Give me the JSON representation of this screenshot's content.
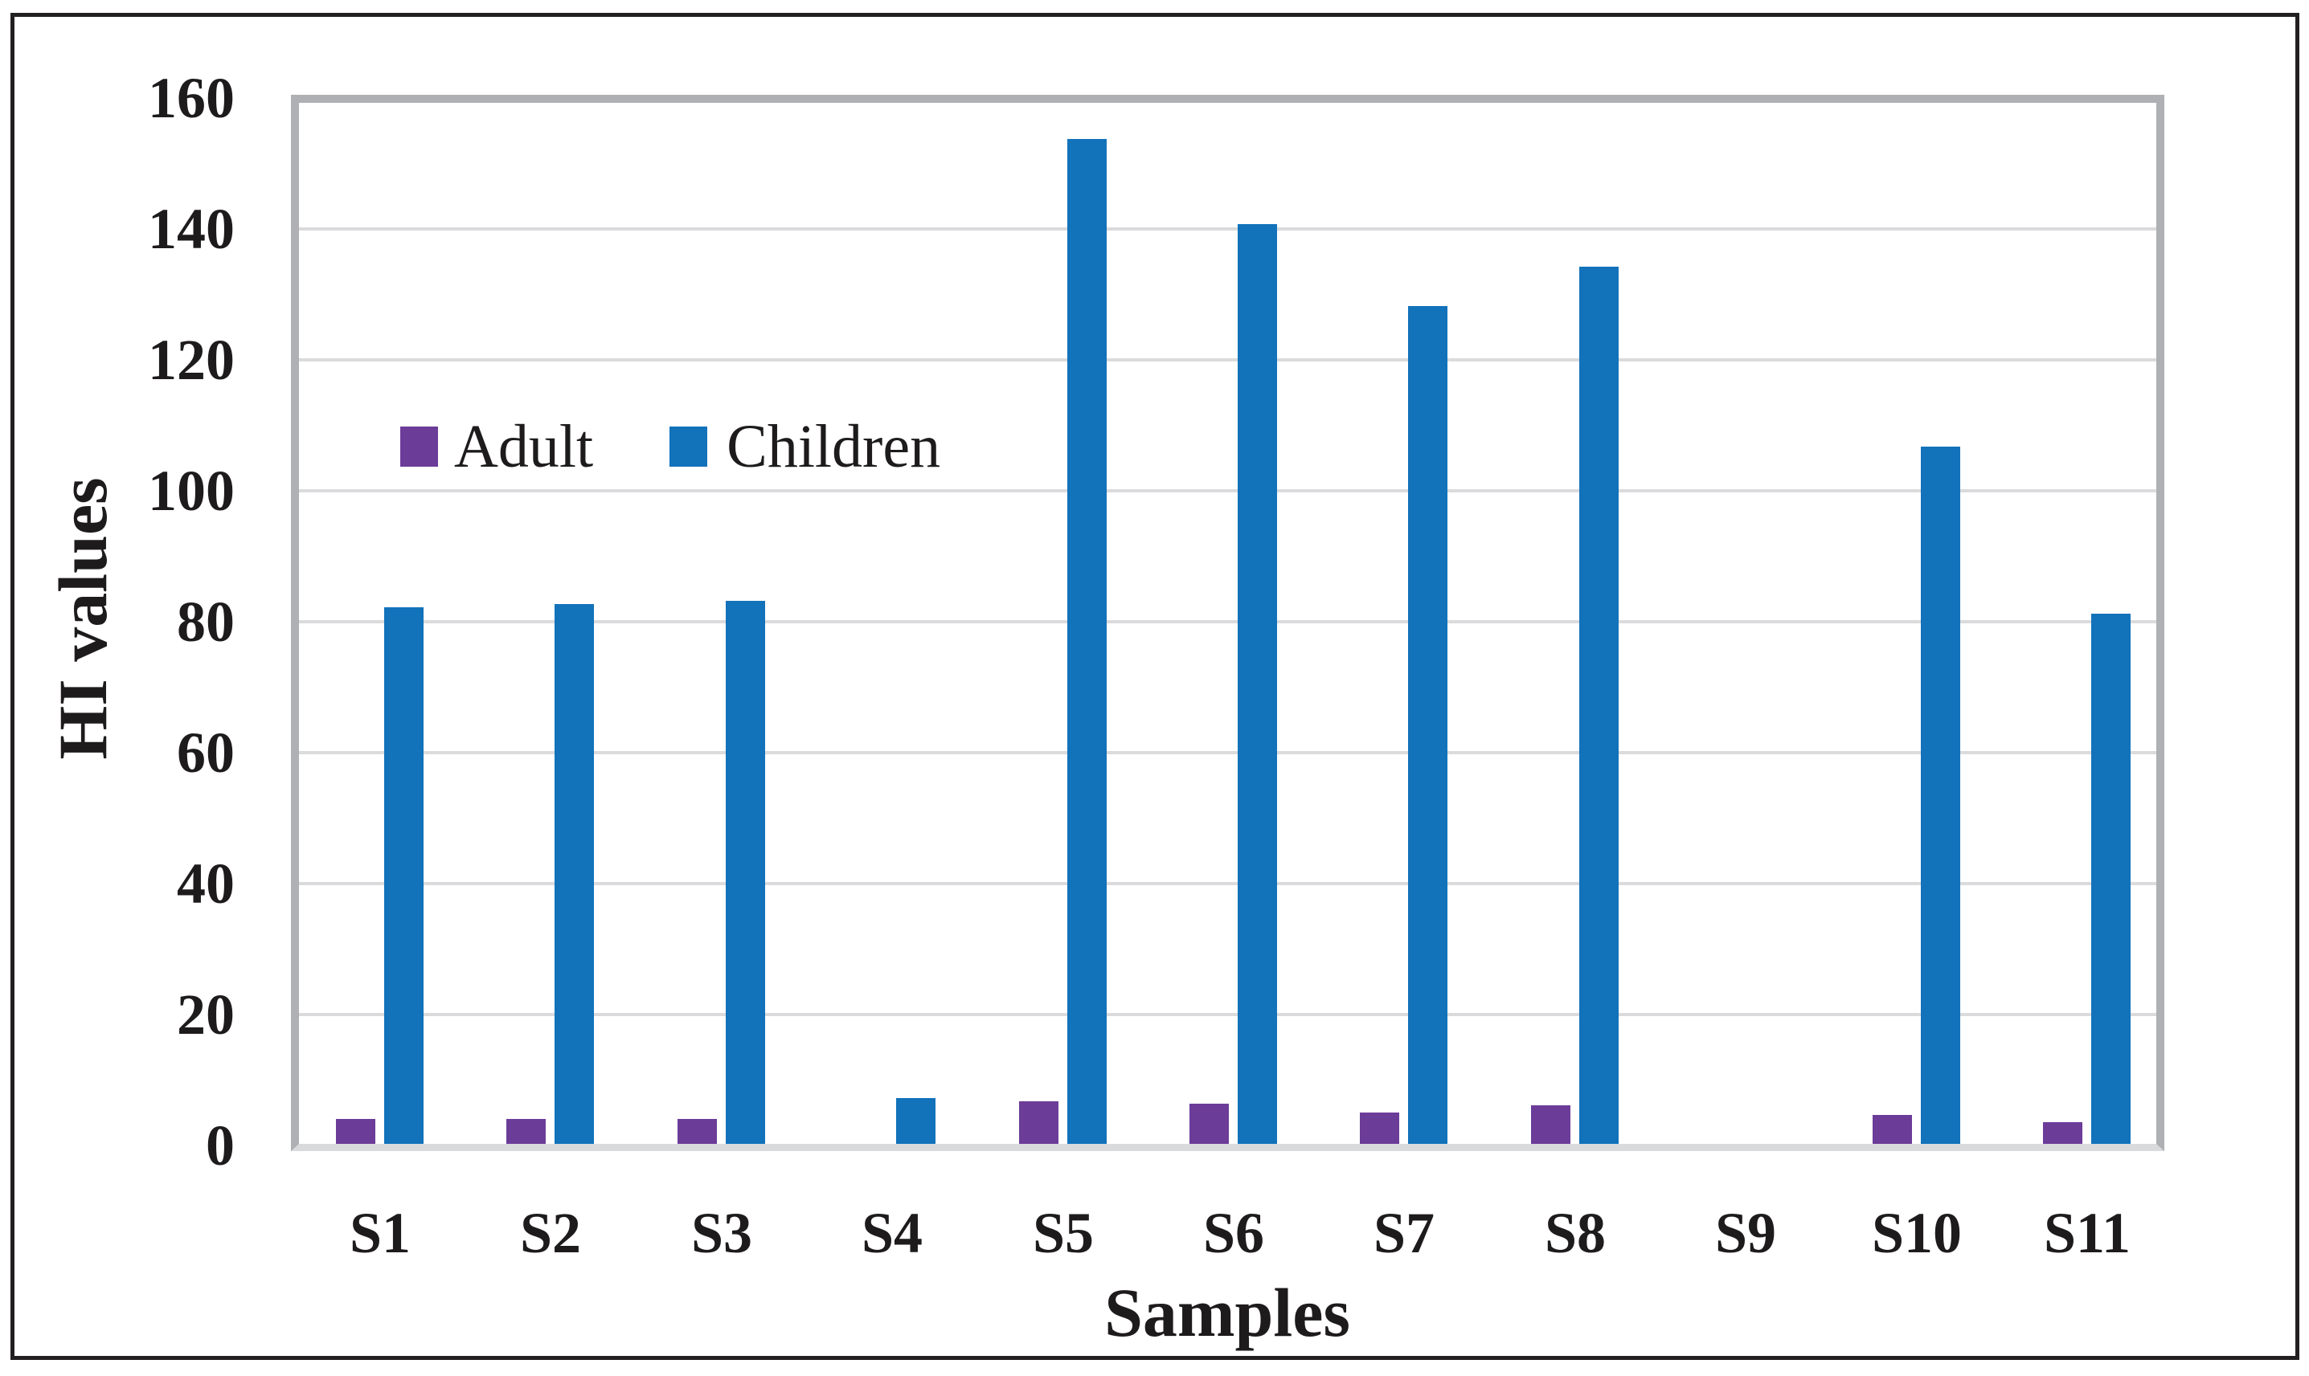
{
  "figure": {
    "type": "grouped-bar-chart",
    "background": "#ffffff",
    "frame_color": "#232021"
  },
  "axes": {
    "y_title": "HI values",
    "x_title": "Samples",
    "y_ticks": [
      0,
      20,
      40,
      60,
      80,
      100,
      120,
      140,
      160
    ],
    "x_labels": [
      "S1",
      "S2",
      "S3",
      "S4",
      "S5",
      "S6",
      "S7",
      "S8",
      "S9",
      "S10",
      "S11"
    ]
  },
  "legend": {
    "position": "inside-upper-left",
    "items": [
      {
        "label": "Adult"
      },
      {
        "label": "Children"
      }
    ]
  },
  "colors": {
    "adult": "#6c3c99",
    "children": "#1272ba",
    "gridline": "#dbdbdd",
    "plot_border": "#afb0b3",
    "baseline": "#d9dadc",
    "text": "#1e1b1c"
  },
  "chart_data": {
    "type": "bar",
    "title": "",
    "categories": [
      "S1",
      "S2",
      "S3",
      "S4",
      "S5",
      "S6",
      "S7",
      "S8",
      "S9",
      "S10",
      "S11"
    ],
    "series": [
      {
        "name": "Adult",
        "color": "#6c3c99",
        "values": [
          3.8,
          3.8,
          3.8,
          0,
          6.5,
          6.1,
          4.8,
          5.9,
          0,
          4.4,
          3.3
        ]
      },
      {
        "name": "Children",
        "color": "#1272ba",
        "values": [
          82,
          82.5,
          83,
          7,
          153.5,
          140.5,
          128,
          134,
          0,
          106.5,
          81
        ]
      }
    ],
    "xlabel": "Samples",
    "ylabel": "HI values",
    "ylim": [
      0,
      160
    ],
    "ytick_step": 20,
    "grid": true,
    "legend_position": "upper-left-inside"
  }
}
